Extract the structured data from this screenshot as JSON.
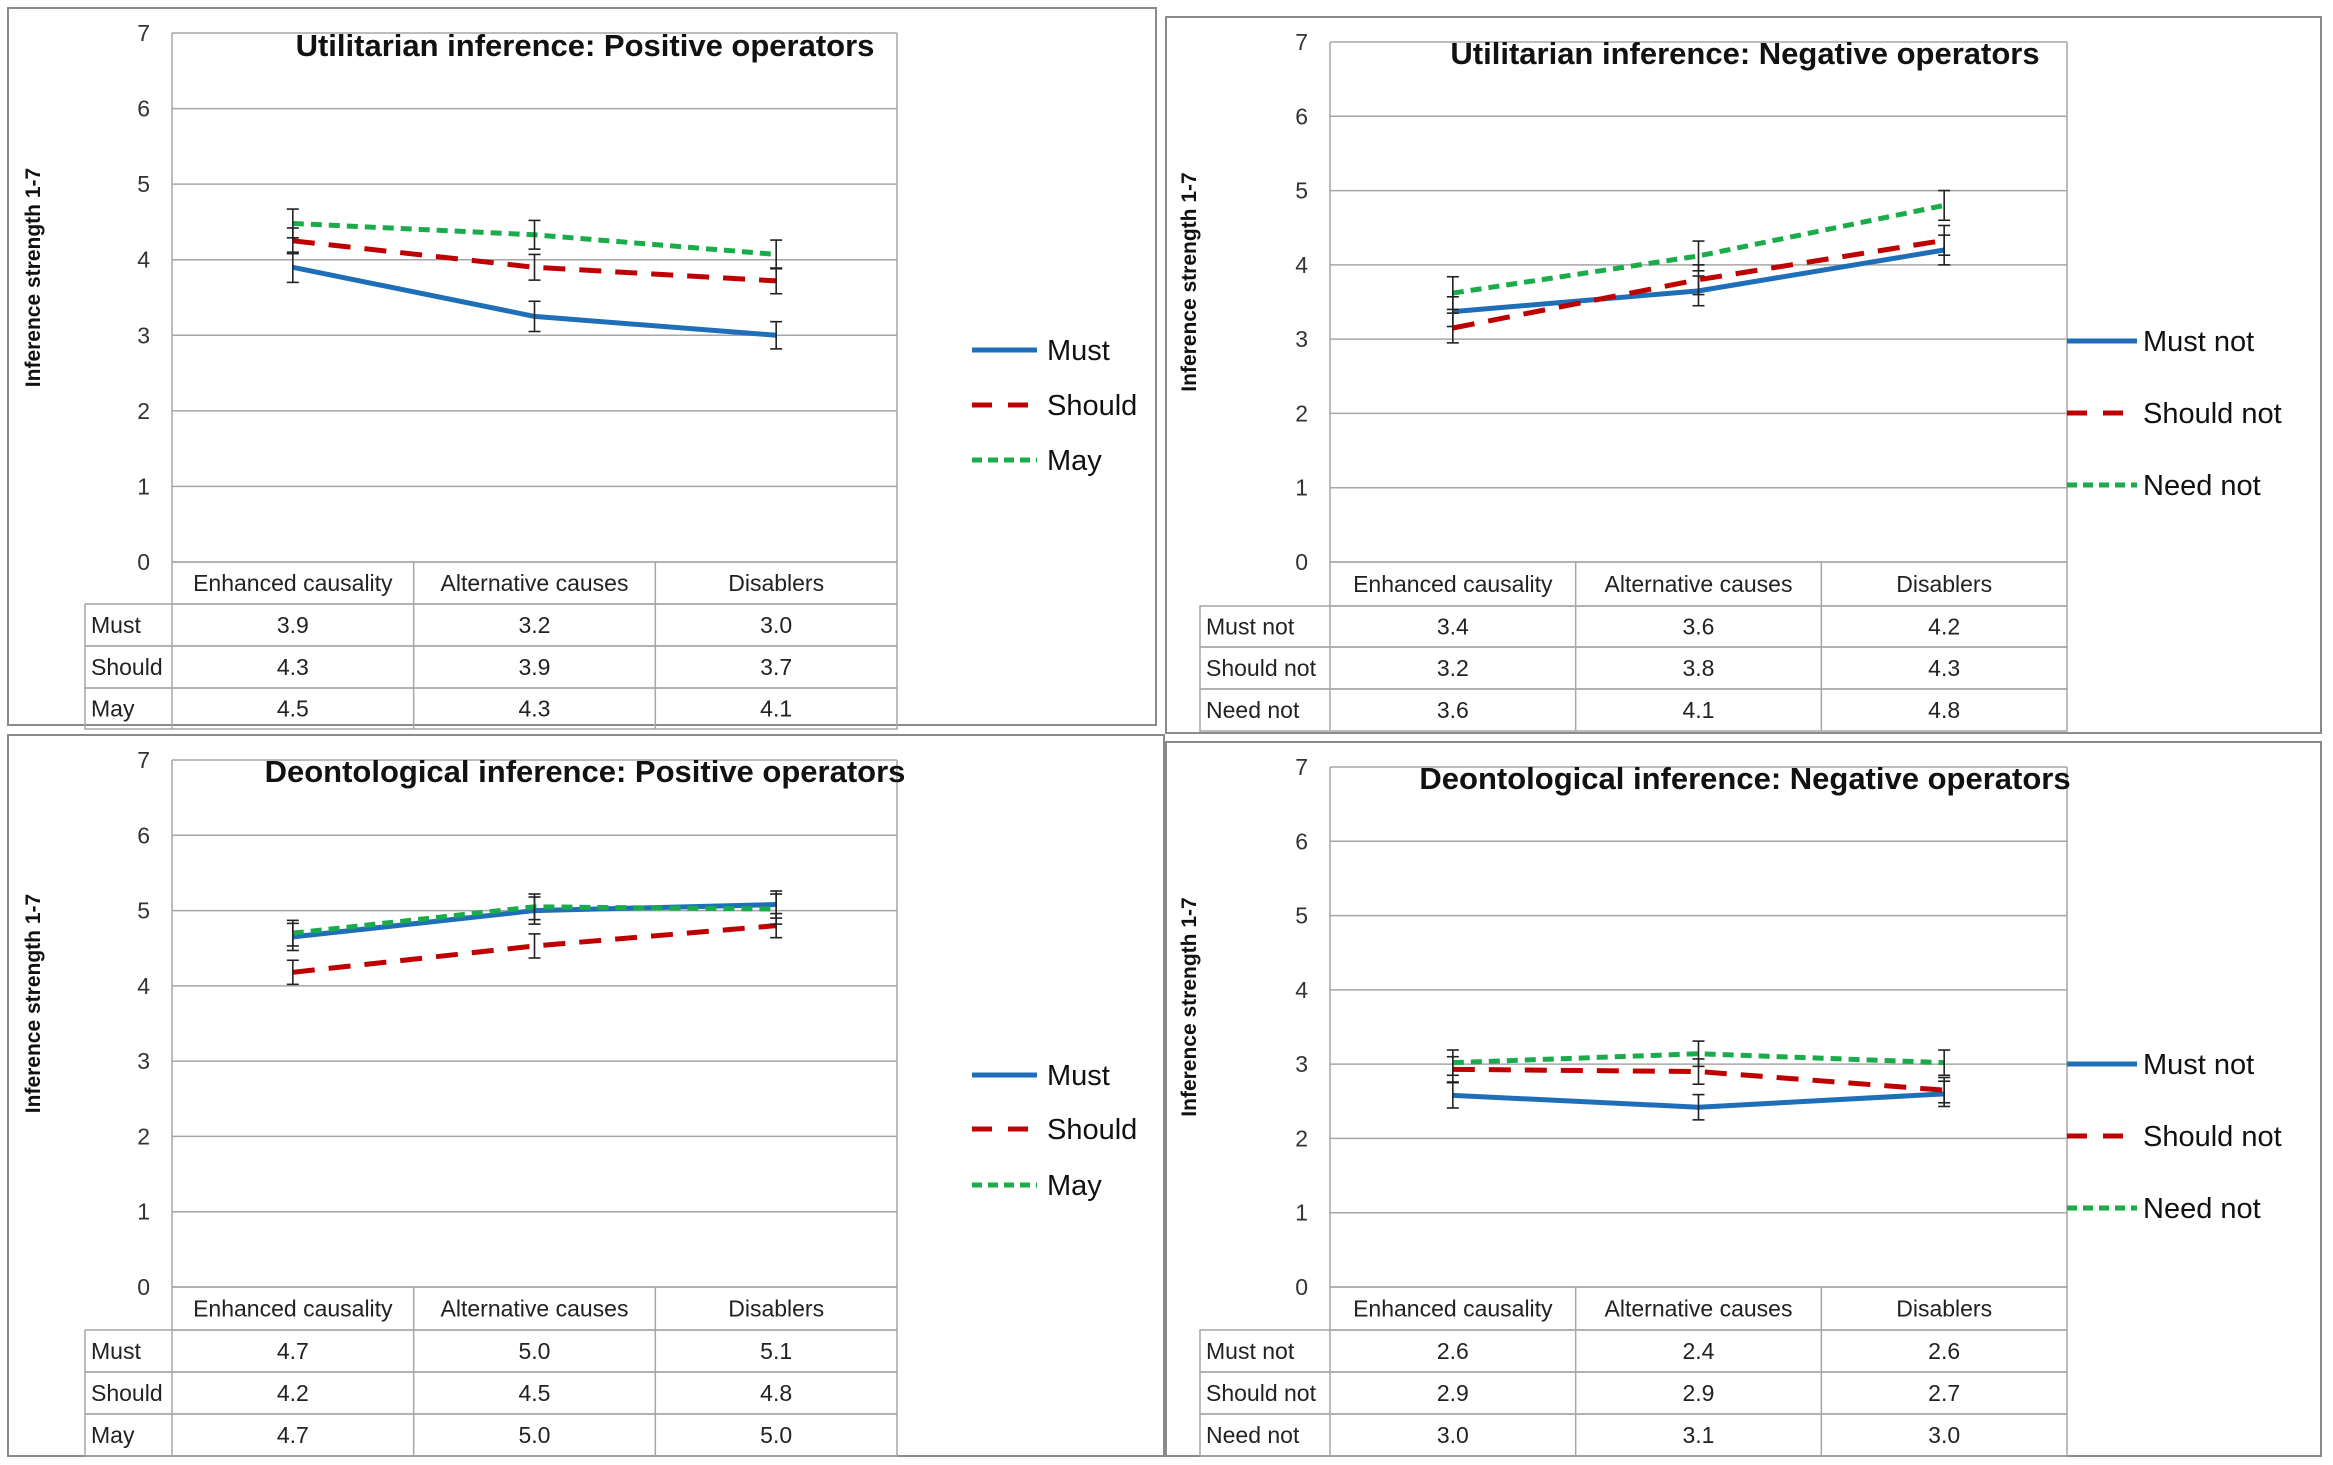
{
  "chart_data": [
    {
      "type": "line",
      "title": "Utilitarian inference: Positive operators",
      "ylabel": "Inference strength 1-7",
      "xlabel": "",
      "ylim": [
        0,
        7
      ],
      "yticks": [
        "0",
        "1",
        "2",
        "3",
        "4",
        "5",
        "6",
        "7"
      ],
      "categories": [
        "Enhanced causality",
        "Alternative causes",
        "Disablers"
      ],
      "legend_position": "right",
      "series": [
        {
          "name": "Must",
          "values": [
            3.9,
            3.25,
            3.0
          ],
          "errors": [
            0.2,
            0.2,
            0.18
          ],
          "table": [
            "3.9",
            "3.2",
            "3.0"
          ],
          "color": "#1f6fb8",
          "dash": "solid"
        },
        {
          "name": "Should",
          "values": [
            4.25,
            3.9,
            3.72
          ],
          "errors": [
            0.17,
            0.17,
            0.17
          ],
          "table": [
            "4.3",
            "3.9",
            "3.7"
          ],
          "color": "#c00000",
          "dash": "long"
        },
        {
          "name": "May",
          "values": [
            4.48,
            4.33,
            4.07
          ],
          "errors": [
            0.19,
            0.19,
            0.19
          ],
          "table": [
            "4.5",
            "4.3",
            "4.1"
          ],
          "color": "#1aab4b",
          "dash": "short"
        }
      ]
    },
    {
      "type": "line",
      "title": "Utilitarian inference: Negative operators",
      "ylabel": "Inference strength 1-7",
      "xlabel": "",
      "ylim": [
        0,
        7
      ],
      "yticks": [
        "0",
        "1",
        "2",
        "3",
        "4",
        "5",
        "6",
        "7"
      ],
      "categories": [
        "Enhanced causality",
        "Alternative causes",
        "Disablers"
      ],
      "legend_position": "right",
      "series": [
        {
          "name": "Must not",
          "values": [
            3.37,
            3.65,
            4.2
          ],
          "errors": [
            0.2,
            0.2,
            0.2
          ],
          "table": [
            "3.4",
            "3.6",
            "4.2"
          ],
          "color": "#1f6fb8",
          "dash": "solid"
        },
        {
          "name": "Should not",
          "values": [
            3.15,
            3.8,
            4.33
          ],
          "errors": [
            0.2,
            0.2,
            0.2
          ],
          "table": [
            "3.2",
            "3.8",
            "4.3"
          ],
          "color": "#c00000",
          "dash": "long"
        },
        {
          "name": "Need not",
          "values": [
            3.62,
            4.12,
            4.8
          ],
          "errors": [
            0.22,
            0.2,
            0.2
          ],
          "table": [
            "3.6",
            "4.1",
            "4.8"
          ],
          "color": "#1aab4b",
          "dash": "short"
        }
      ]
    },
    {
      "type": "line",
      "title": "Deontological inference: Positive operators",
      "ylabel": "Inference strength 1-7",
      "xlabel": "",
      "ylim": [
        0,
        7
      ],
      "yticks": [
        "0",
        "1",
        "2",
        "3",
        "4",
        "5",
        "6",
        "7"
      ],
      "categories": [
        "Enhanced causality",
        "Alternative causes",
        "Disablers"
      ],
      "legend_position": "right",
      "series": [
        {
          "name": "Must",
          "values": [
            4.65,
            5.0,
            5.08
          ],
          "errors": [
            0.18,
            0.18,
            0.18
          ],
          "table": [
            "4.7",
            "5.0",
            "5.1"
          ],
          "color": "#1f6fb8",
          "dash": "solid"
        },
        {
          "name": "Should",
          "values": [
            4.18,
            4.53,
            4.8
          ],
          "errors": [
            0.16,
            0.16,
            0.16
          ],
          "table": [
            "4.2",
            "4.5",
            "4.8"
          ],
          "color": "#c00000",
          "dash": "long"
        },
        {
          "name": "May",
          "values": [
            4.7,
            5.05,
            5.02
          ],
          "errors": [
            0.17,
            0.17,
            0.2
          ],
          "table": [
            "4.7",
            "5.0",
            "5.0"
          ],
          "color": "#1aab4b",
          "dash": "short"
        }
      ]
    },
    {
      "type": "line",
      "title": "Deontological inference: Negative operators",
      "ylabel": "Inference strength 1-7",
      "xlabel": "",
      "ylim": [
        0,
        7
      ],
      "yticks": [
        "0",
        "1",
        "2",
        "3",
        "4",
        "5",
        "6",
        "7"
      ],
      "categories": [
        "Enhanced causality",
        "Alternative causes",
        "Disablers"
      ],
      "legend_position": "right",
      "series": [
        {
          "name": "Must not",
          "values": [
            2.58,
            2.42,
            2.6
          ],
          "errors": [
            0.17,
            0.17,
            0.17
          ],
          "table": [
            "2.6",
            "2.4",
            "2.6"
          ],
          "color": "#1f6fb8",
          "dash": "solid"
        },
        {
          "name": "Should not",
          "values": [
            2.93,
            2.9,
            2.65
          ],
          "errors": [
            0.17,
            0.17,
            0.17
          ],
          "table": [
            "2.9",
            "2.9",
            "2.7"
          ],
          "color": "#c00000",
          "dash": "long"
        },
        {
          "name": "Need not",
          "values": [
            3.02,
            3.14,
            3.02
          ],
          "errors": [
            0.17,
            0.17,
            0.17
          ],
          "table": [
            "3.0",
            "3.1",
            "3.0"
          ],
          "color": "#1aab4b",
          "dash": "short"
        }
      ]
    }
  ]
}
